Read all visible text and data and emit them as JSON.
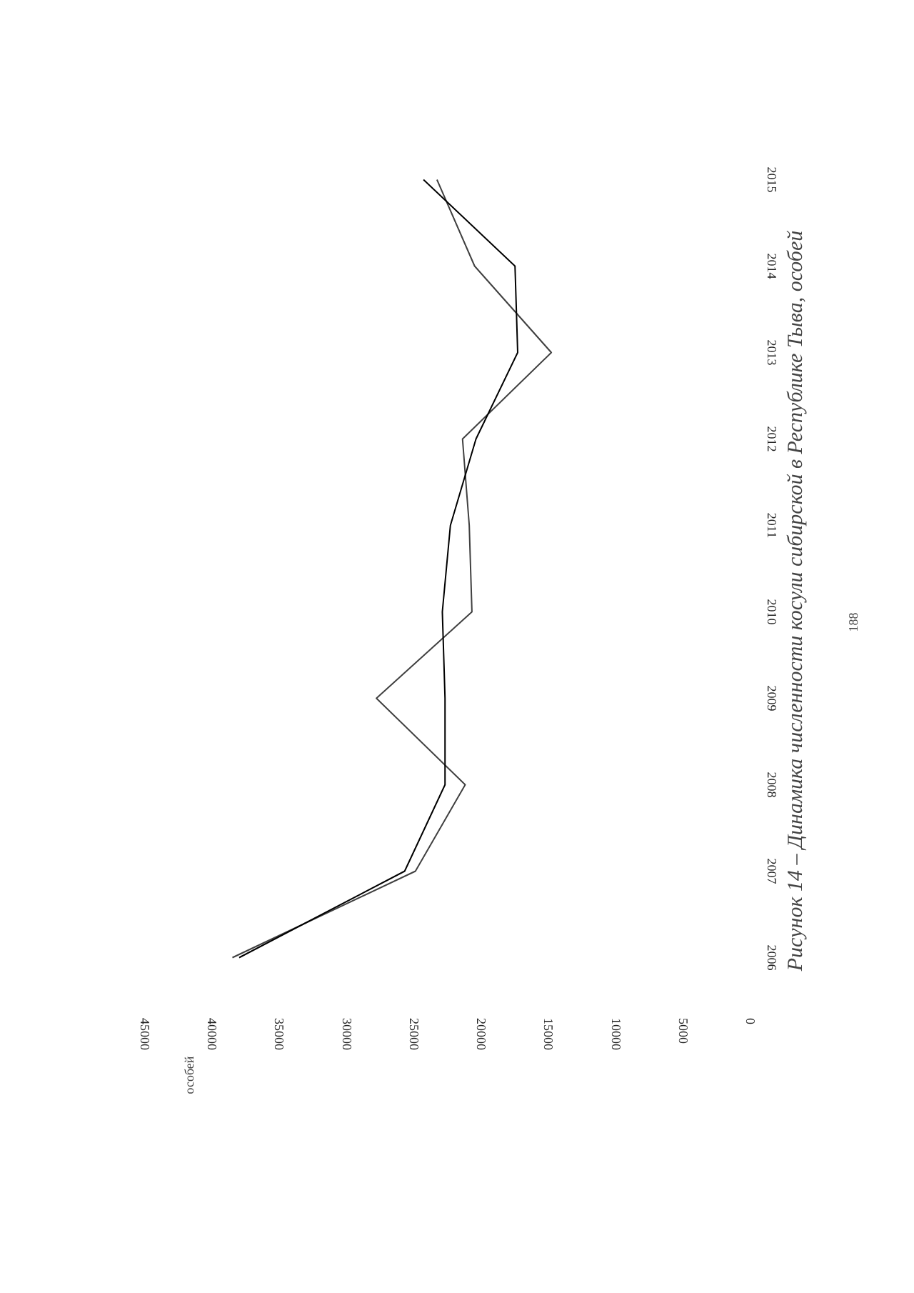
{
  "chart_data": {
    "type": "line",
    "orientation": "horizontal",
    "title": "Рисунок 14 – Динамика численности косули сибирской в Республике Тыва, особей",
    "categories": [
      "2015",
      "2014",
      "2013",
      "2012",
      "2011",
      "2010",
      "2009",
      "2008",
      "2007",
      "2006"
    ],
    "series": [
      {
        "color": "#404040",
        "values": [
          23300,
          20500,
          14800,
          21400,
          20900,
          20700,
          27800,
          21200,
          24900,
          38500
        ]
      },
      {
        "color": "#000000",
        "values": [
          24300,
          17500,
          17300,
          20400,
          22300,
          22900,
          22700,
          22700,
          25700,
          38000
        ]
      }
    ],
    "xlim": [
      45000,
      0
    ],
    "xticks": [
      45000,
      40000,
      35000,
      30000,
      25000,
      20000,
      15000,
      10000,
      5000,
      0
    ],
    "grid": false,
    "annotations": [
      "особей",
      "188"
    ]
  }
}
